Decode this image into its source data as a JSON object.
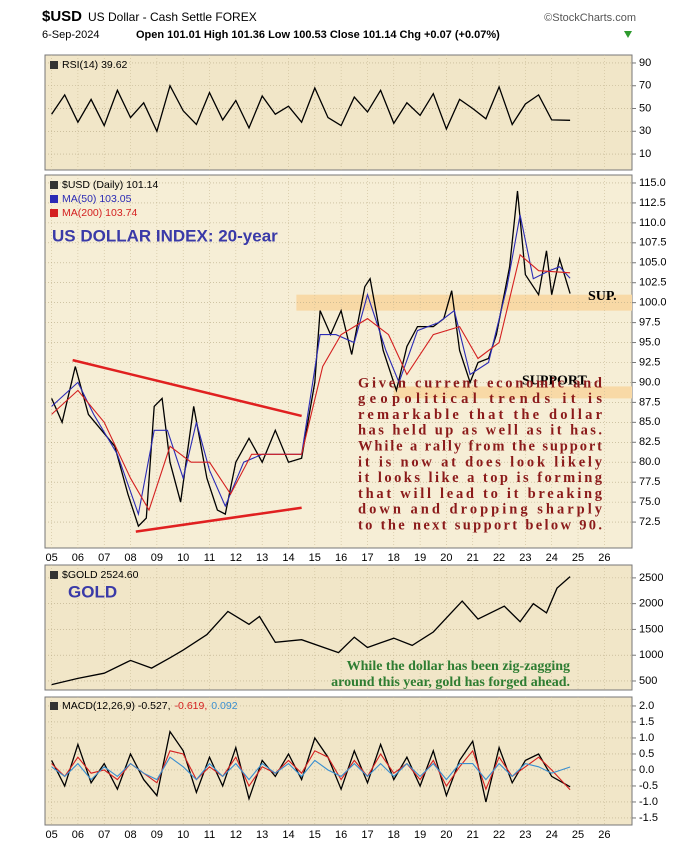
{
  "header": {
    "symbol": "$USD",
    "name": "US Dollar - Cash Settle FOREX",
    "source": "©StockCharts.com",
    "date": "6-Sep-2024",
    "quote": "Open 101.01 High 101.36 Low 100.53 Close 101.14 Chg +0.07 (+0.07%)"
  },
  "chart_data": [
    {
      "type": "line",
      "grid": true,
      "xlim": [
        2004.75,
        2027.05
      ],
      "ylim": [
        -4,
        97
      ],
      "yticks": [
        10,
        30,
        50,
        70,
        90
      ],
      "series": [
        {
          "name": "RSI(14) 39.62",
          "color": "#000000",
          "x": [
            2005,
            2005.5,
            2006,
            2006.5,
            2007,
            2007.5,
            2008,
            2008.5,
            2009,
            2009.5,
            2010,
            2010.5,
            2011,
            2011.5,
            2012,
            2012.5,
            2013,
            2013.5,
            2014,
            2014.5,
            2015,
            2015.5,
            2016,
            2016.5,
            2017,
            2017.5,
            2018,
            2018.5,
            2019,
            2019.5,
            2020,
            2020.5,
            2021,
            2021.5,
            2022,
            2022.5,
            2023,
            2023.5,
            2024,
            2024.7
          ],
          "values": [
            45,
            62,
            38,
            58,
            35,
            66,
            42,
            55,
            30,
            70,
            48,
            36,
            64,
            40,
            57,
            33,
            61,
            45,
            52,
            38,
            68,
            42,
            35,
            60,
            47,
            66,
            37,
            55,
            44,
            63,
            32,
            58,
            50,
            41,
            69,
            36,
            54,
            62,
            40,
            39.62
          ]
        }
      ]
    },
    {
      "type": "line",
      "grid": true,
      "xlim": [
        2004.75,
        2027.05
      ],
      "ylim": [
        69.25,
        116
      ],
      "yticks": [
        72.5,
        {
          "value": 75,
          "label": "75.0"
        },
        77.5,
        {
          "value": 80,
          "label": "80.0"
        },
        82.5,
        {
          "value": 85,
          "label": "85.0"
        },
        87.5,
        {
          "value": 90,
          "label": "90.0"
        },
        92.5,
        {
          "value": 95,
          "label": "95.0"
        },
        97.5,
        {
          "value": 100,
          "label": "100.0"
        },
        102.5,
        {
          "value": 105,
          "label": "105.0"
        },
        107.5,
        {
          "value": 110,
          "label": "110.0"
        },
        112.5,
        {
          "value": 115,
          "label": "115.0"
        }
      ],
      "xticks": [
        {
          "value": 2005,
          "label": "05"
        },
        {
          "value": 2006,
          "label": "06"
        },
        {
          "value": 2007,
          "label": "07"
        },
        {
          "value": 2008,
          "label": "08"
        },
        {
          "value": 2009,
          "label": "09"
        },
        {
          "value": 2010,
          "label": "10"
        },
        {
          "value": 2011,
          "label": "11"
        },
        {
          "value": 2012,
          "label": "12"
        },
        {
          "value": 2013,
          "label": "13"
        },
        {
          "value": 2014,
          "label": "14"
        },
        {
          "value": 2015,
          "label": "15"
        },
        {
          "value": 2016,
          "label": "16"
        },
        {
          "value": 2017,
          "label": "17"
        },
        {
          "value": 2018,
          "label": "18"
        },
        {
          "value": 2019,
          "label": "19"
        },
        {
          "value": 2020,
          "label": "20"
        },
        {
          "value": 2021,
          "label": "21"
        },
        {
          "value": 2022,
          "label": "22"
        },
        {
          "value": 2023,
          "label": "23"
        },
        {
          "value": 2024,
          "label": "24"
        },
        {
          "value": 2025,
          "label": "25"
        },
        {
          "value": 2026,
          "label": "26"
        }
      ],
      "title": "US DOLLAR INDEX: 20-year",
      "bands": [
        {
          "from": 99,
          "to": 101,
          "x_from": 2014.3,
          "label": "SUP."
        },
        {
          "from": 88,
          "to": 89.5,
          "x_from": 2018,
          "label": "SUPPORT"
        }
      ],
      "trendlines": [
        {
          "x": [
            2005.8,
            2014.5
          ],
          "y": [
            92.8,
            85.8
          ],
          "color": "#e02020"
        },
        {
          "x": [
            2008.2,
            2014.5
          ],
          "y": [
            71.3,
            74.3
          ],
          "color": "#e02020"
        }
      ],
      "note_lines": [
        "Given current economic and",
        "geopolitical trends it is",
        "remarkable that the dollar",
        "has held up as well as it has.",
        "While a rally from the support",
        "it is now at does look likely",
        "it looks like a top is forming",
        "that will lead to it breaking",
        "down and dropping sharply",
        "to the next support below 90."
      ],
      "note_color": "#8b1a1a",
      "series": [
        {
          "name": "$USD (Daily) 101.14",
          "color": "#000000",
          "x": [
            2005.0,
            2005.4,
            2005.9,
            2006.4,
            2006.9,
            2007.4,
            2007.9,
            2008.3,
            2008.6,
            2008.9,
            2009.2,
            2009.5,
            2009.9,
            2010.4,
            2010.9,
            2011.3,
            2011.6,
            2012.0,
            2012.5,
            2013.0,
            2013.5,
            2014.0,
            2014.5,
            2015.0,
            2015.2,
            2015.6,
            2016.0,
            2016.4,
            2016.9,
            2017.1,
            2017.6,
            2018.1,
            2018.5,
            2018.9,
            2019.5,
            2019.9,
            2020.2,
            2020.5,
            2020.9,
            2021.2,
            2021.6,
            2021.9,
            2022.4,
            2022.7,
            2023.0,
            2023.5,
            2023.8,
            2024.0,
            2024.3,
            2024.7
          ],
          "values": [
            88,
            85,
            92,
            86,
            84,
            82,
            76,
            72,
            73,
            87,
            88,
            80,
            75,
            87,
            78,
            74,
            73.5,
            80,
            83,
            80,
            84,
            80,
            80.5,
            90,
            99,
            96,
            99,
            93.5,
            102,
            103,
            94,
            89,
            94.5,
            97,
            97,
            98,
            101.5,
            94,
            90,
            92.5,
            93,
            96,
            104.5,
            114,
            103.5,
            101,
            106.5,
            101,
            105.5,
            101.14
          ]
        },
        {
          "name": "MA(50) 103.05",
          "color": "#2b2bb5",
          "x": [
            2005,
            2006,
            2006.6,
            2007.5,
            2008.3,
            2008.9,
            2009.4,
            2010.0,
            2010.5,
            2011.0,
            2011.6,
            2012.3,
            2013.0,
            2013.7,
            2014.5,
            2015.2,
            2015.8,
            2016.5,
            2017.0,
            2017.7,
            2018.2,
            2018.9,
            2019.7,
            2020.3,
            2020.9,
            2021.6,
            2022.3,
            2022.8,
            2023.3,
            2023.9,
            2024.3,
            2024.7
          ],
          "values": [
            87,
            90,
            86,
            81,
            73.5,
            84,
            84,
            78,
            85,
            79,
            74.5,
            80,
            81,
            81,
            81,
            96,
            96,
            95,
            101,
            94,
            90,
            96.5,
            97.5,
            99,
            91,
            92.5,
            102,
            111,
            103,
            104,
            104.5,
            103.05
          ]
        },
        {
          "name": "MA(200) 103.74",
          "color": "#d42020",
          "x": [
            2005,
            2006,
            2007,
            2008,
            2008.7,
            2009.5,
            2010.3,
            2011,
            2011.8,
            2012.6,
            2013.5,
            2014.5,
            2015.3,
            2016,
            2017,
            2017.8,
            2018.5,
            2019.5,
            2020.5,
            2021.2,
            2022,
            2022.8,
            2023.5,
            2024.7
          ],
          "values": [
            86,
            89,
            85,
            78,
            74,
            82,
            80,
            80,
            76,
            81,
            81,
            81,
            92,
            96,
            98,
            96,
            91,
            96,
            97,
            93,
            95,
            106,
            104,
            103.74
          ]
        }
      ]
    },
    {
      "type": "line",
      "grid": true,
      "xlim": [
        2004.75,
        2027.05
      ],
      "ylim": [
        325,
        2750
      ],
      "yticks": [
        500,
        1000,
        1500,
        2000,
        2500
      ],
      "title": "GOLD",
      "note_lines": [
        "While the dollar has been zig-zagging",
        "around this year, gold has forged ahead."
      ],
      "note_color": "#2e7d32",
      "series": [
        {
          "name": "$GOLD 2524.60",
          "color": "#000000",
          "x": [
            2005,
            2006,
            2007,
            2008,
            2008.8,
            2009.5,
            2010,
            2010.9,
            2011.7,
            2012.5,
            2012.9,
            2013.5,
            2014.5,
            2015.9,
            2016.5,
            2017,
            2018,
            2018.7,
            2019.5,
            2020.6,
            2021.2,
            2022.2,
            2022.8,
            2023.3,
            2023.8,
            2024.2,
            2024.7
          ],
          "values": [
            430,
            550,
            650,
            900,
            750,
            950,
            1100,
            1400,
            1850,
            1600,
            1750,
            1250,
            1300,
            1050,
            1350,
            1150,
            1330,
            1190,
            1450,
            2050,
            1700,
            1950,
            1650,
            2000,
            1820,
            2300,
            2524.6
          ]
        }
      ]
    },
    {
      "type": "line",
      "grid": true,
      "xlim": [
        2004.75,
        2027.05
      ],
      "ylim": [
        -1.72,
        2.28
      ],
      "yticks": [
        -1.5,
        {
          "value": -1,
          "label": "-1.0"
        },
        -0.5,
        {
          "value": 0,
          "label": "0.0"
        },
        0.5,
        {
          "value": 1,
          "label": "1.0"
        },
        1.5,
        {
          "value": 2,
          "label": "2.0"
        }
      ],
      "xticks": [
        {
          "value": 2005,
          "label": "05"
        },
        {
          "value": 2006,
          "label": "06"
        },
        {
          "value": 2007,
          "label": "07"
        },
        {
          "value": 2008,
          "label": "08"
        },
        {
          "value": 2009,
          "label": "09"
        },
        {
          "value": 2010,
          "label": "10"
        },
        {
          "value": 2011,
          "label": "11"
        },
        {
          "value": 2012,
          "label": "12"
        },
        {
          "value": 2013,
          "label": "13"
        },
        {
          "value": 2014,
          "label": "14"
        },
        {
          "value": 2015,
          "label": "15"
        },
        {
          "value": 2016,
          "label": "16"
        },
        {
          "value": 2017,
          "label": "17"
        },
        {
          "value": 2018,
          "label": "18"
        },
        {
          "value": 2019,
          "label": "19"
        },
        {
          "value": 2020,
          "label": "20"
        },
        {
          "value": 2021,
          "label": "21"
        },
        {
          "value": 2022,
          "label": "22"
        },
        {
          "value": 2023,
          "label": "23"
        },
        {
          "value": 2024,
          "label": "24"
        },
        {
          "value": 2025,
          "label": "25"
        },
        {
          "value": 2026,
          "label": "26"
        }
      ],
      "series": [
        {
          "name": "MACD(12,26,9) -0.527,",
          "color": "#000000",
          "x": [
            2005,
            2005.5,
            2006,
            2006.5,
            2007,
            2007.5,
            2008,
            2008.5,
            2009,
            2009.5,
            2010,
            2010.5,
            2011,
            2011.5,
            2012,
            2012.5,
            2013,
            2013.5,
            2014,
            2014.5,
            2015,
            2015.5,
            2016,
            2016.5,
            2017,
            2017.5,
            2018,
            2018.5,
            2019,
            2019.5,
            2020,
            2020.5,
            2021,
            2021.5,
            2022,
            2022.5,
            2023,
            2023.5,
            2024,
            2024.7
          ],
          "values": [
            0.3,
            -0.5,
            0.8,
            -0.4,
            0.2,
            -0.6,
            0.5,
            -0.3,
            -0.8,
            1.2,
            0.6,
            -0.7,
            0.4,
            -0.5,
            0.7,
            -0.9,
            0.3,
            -0.2,
            0.5,
            -0.3,
            1.0,
            0.4,
            -0.6,
            0.6,
            -0.4,
            0.8,
            -0.3,
            0.4,
            -0.5,
            0.6,
            -0.8,
            0.3,
            0.9,
            -1.0,
            0.7,
            -0.4,
            0.3,
            0.5,
            -0.2,
            -0.527
          ]
        },
        {
          "name": "-0.619,",
          "color": "#d42020",
          "x": [
            2005,
            2005.5,
            2006,
            2006.5,
            2007,
            2007.5,
            2008,
            2008.5,
            2009,
            2009.5,
            2010,
            2010.5,
            2011,
            2011.5,
            2012,
            2012.5,
            2013,
            2013.5,
            2014,
            2014.5,
            2015,
            2015.5,
            2016,
            2016.5,
            2017,
            2017.5,
            2018,
            2018.5,
            2019,
            2019.5,
            2020,
            2020.5,
            2021,
            2021.5,
            2022,
            2022.5,
            2023,
            2023.5,
            2024,
            2024.7
          ],
          "values": [
            0.2,
            -0.2,
            0.4,
            -0.1,
            0.0,
            -0.3,
            0.2,
            -0.1,
            -0.4,
            0.6,
            0.5,
            -0.3,
            0.1,
            -0.2,
            0.4,
            -0.5,
            0.1,
            -0.1,
            0.3,
            -0.1,
            0.6,
            0.4,
            -0.3,
            0.3,
            -0.2,
            0.5,
            -0.1,
            0.2,
            -0.3,
            0.3,
            -0.5,
            0.1,
            0.6,
            -0.6,
            0.4,
            -0.2,
            0.1,
            0.4,
            0.0,
            -0.619
          ]
        },
        {
          "name": "0.092",
          "color": "#3a8fd0",
          "x": [
            2005,
            2005.5,
            2006,
            2006.5,
            2007,
            2007.5,
            2008,
            2008.5,
            2009,
            2009.5,
            2010,
            2010.5,
            2011,
            2011.5,
            2012,
            2012.5,
            2013,
            2013.5,
            2014,
            2014.5,
            2015,
            2015.5,
            2016,
            2016.5,
            2017,
            2017.5,
            2018,
            2018.5,
            2019,
            2019.5,
            2020,
            2020.5,
            2021,
            2021.5,
            2022,
            2022.5,
            2023,
            2023.5,
            2024,
            2024.7
          ],
          "values": [
            0.1,
            -0.2,
            0.2,
            -0.3,
            0.1,
            -0.2,
            0.2,
            -0.1,
            -0.3,
            0.4,
            0.1,
            -0.3,
            0.2,
            -0.2,
            0.2,
            -0.3,
            0.2,
            -0.1,
            0.2,
            -0.2,
            0.3,
            0.0,
            -0.2,
            0.2,
            -0.2,
            0.2,
            -0.2,
            0.2,
            -0.2,
            0.2,
            -0.3,
            0.2,
            0.2,
            -0.3,
            0.2,
            -0.2,
            0.2,
            0.1,
            -0.1,
            0.092
          ]
        }
      ]
    }
  ]
}
